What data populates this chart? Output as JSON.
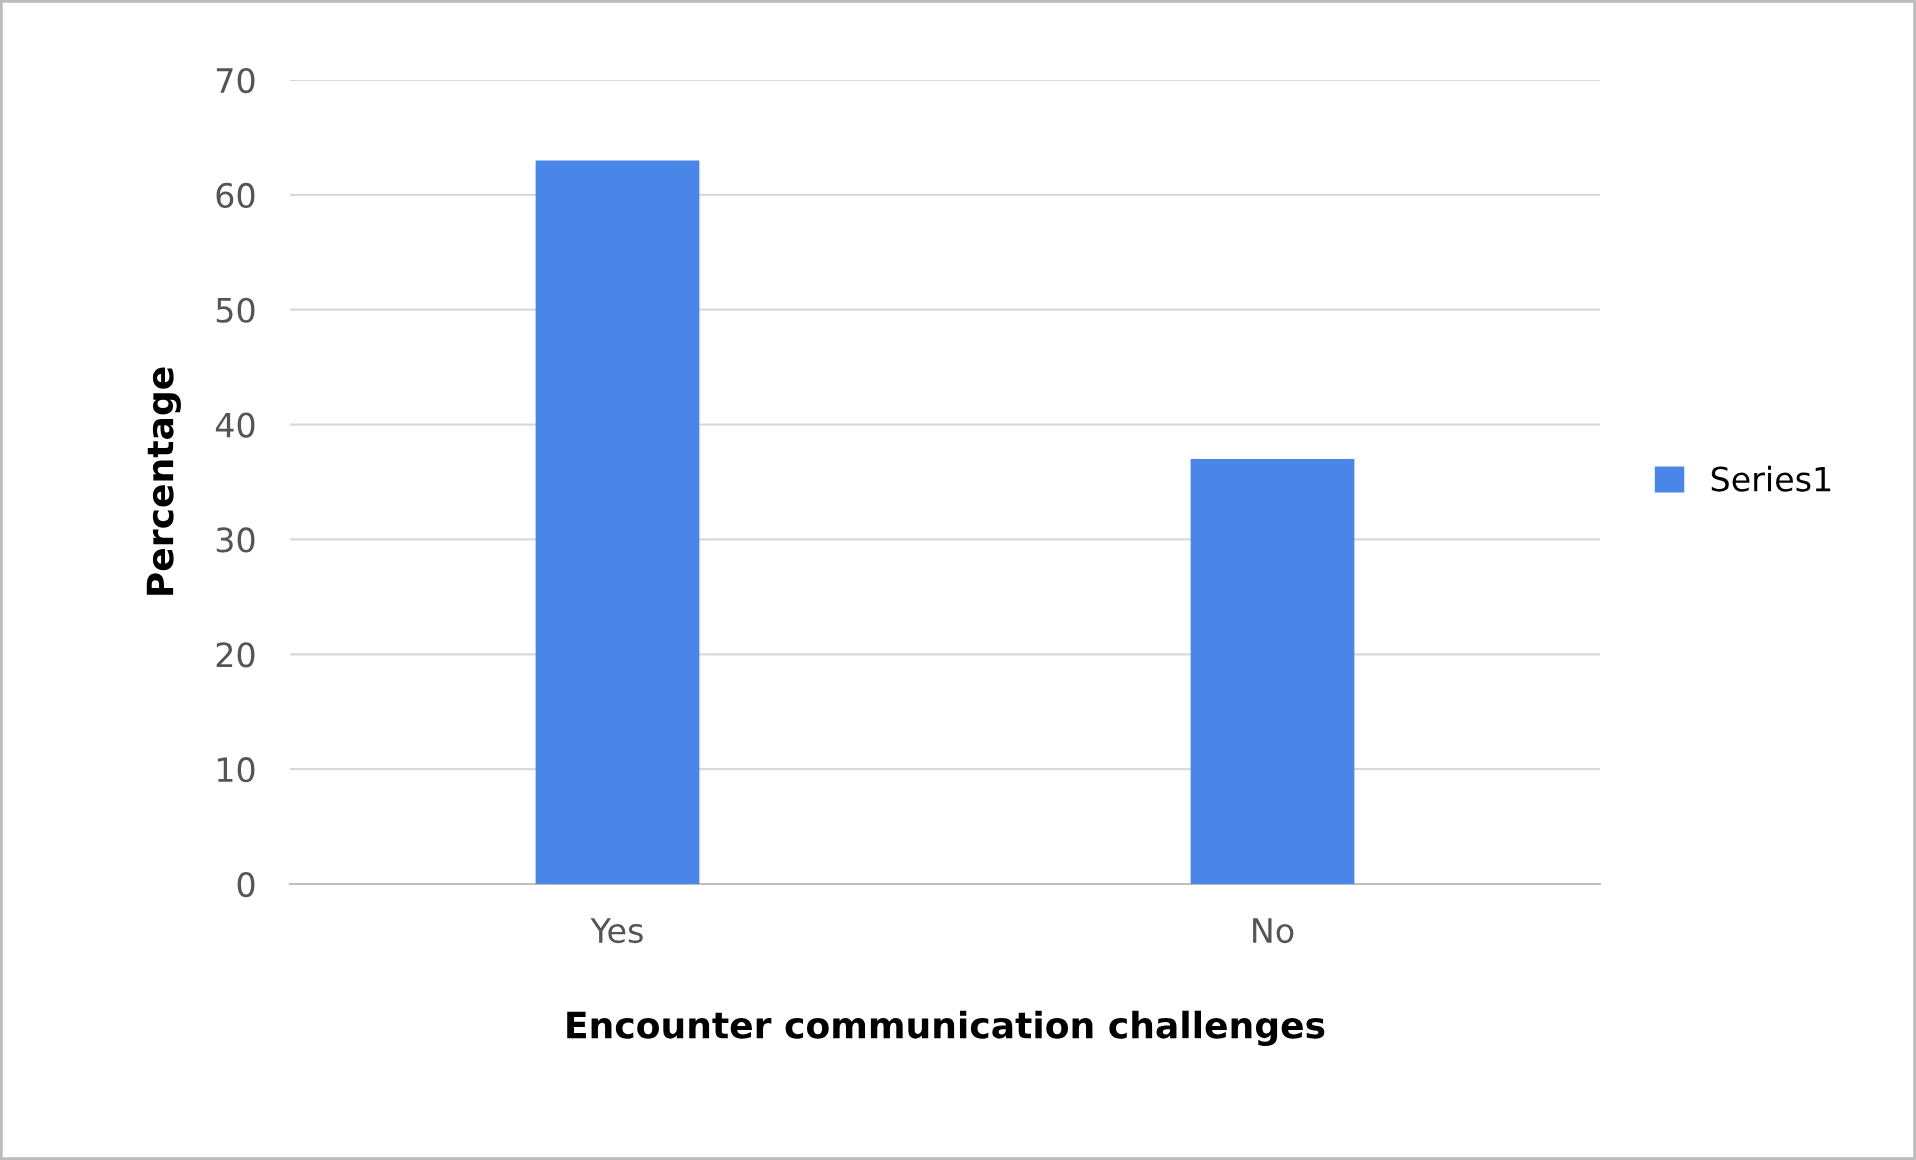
{
  "chart_data": {
    "type": "bar",
    "xlabel": "Encounter communication challenges",
    "ylabel": "Percentage",
    "categories": [
      "Yes",
      "No"
    ],
    "series": [
      {
        "name": "Series1",
        "color": "#4a86e8",
        "values": [
          63,
          37
        ]
      }
    ],
    "ylim": [
      0,
      70
    ],
    "yticks": [
      0,
      10,
      20,
      30,
      40,
      50,
      60,
      70
    ],
    "grid": "y",
    "legend": "right"
  }
}
